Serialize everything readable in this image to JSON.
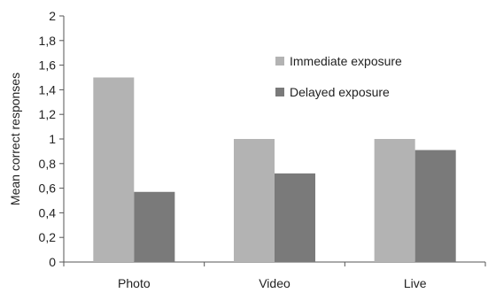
{
  "chart_data": {
    "type": "bar",
    "title": "",
    "xlabel": "",
    "ylabel": "Mean correct responses",
    "categories": [
      "Photo",
      "Video",
      "Live"
    ],
    "series": [
      {
        "name": "Immediate exposure",
        "values": [
          1.5,
          1.0,
          1.0
        ],
        "color": "#b3b3b3"
      },
      {
        "name": "Delayed exposure",
        "values": [
          0.57,
          0.72,
          0.91
        ],
        "color": "#7a7a7a"
      }
    ],
    "ylim": [
      0,
      2
    ],
    "yticks": [
      "0",
      "0,2",
      "0,4",
      "0,6",
      "0,8",
      "1",
      "1,2",
      "1,4",
      "1,6",
      "1,8",
      "2"
    ],
    "grid": false,
    "legend_position": "top-right"
  }
}
